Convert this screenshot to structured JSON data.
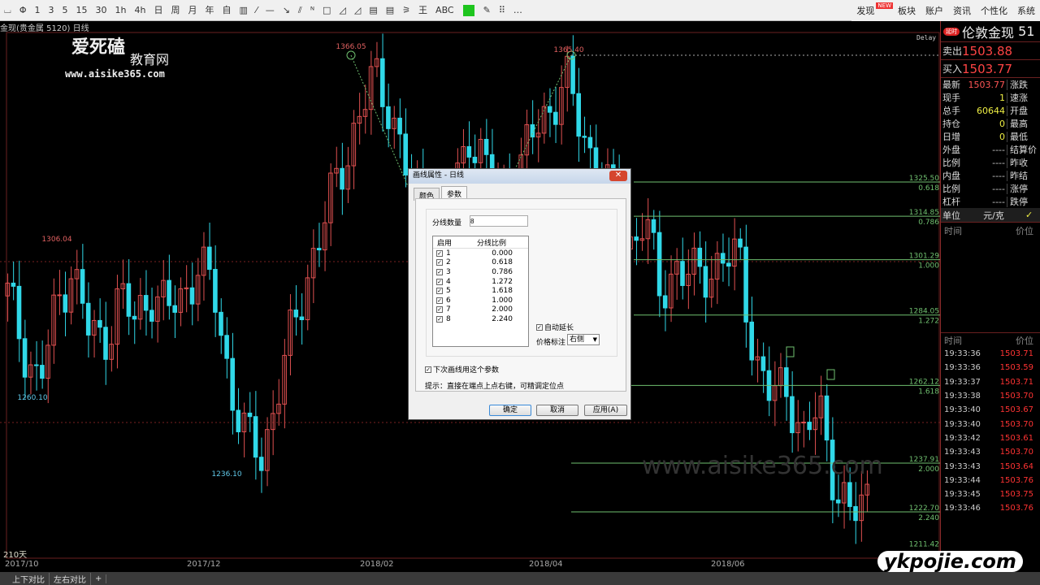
{
  "toolbar": {
    "items": [
      "⌴",
      "Φ",
      "1",
      "3",
      "5",
      "15",
      "30",
      "1h",
      "4h",
      "日",
      "周",
      "月",
      "年",
      "自",
      "▥",
      "⁄",
      "—",
      "↘",
      "⫽",
      "ᴺ",
      "□",
      "◿",
      "◿",
      "▤",
      "▤",
      "⚞",
      "王",
      "ABC",
      "",
      "✎",
      "⠿",
      "…"
    ],
    "nav": [
      {
        "label": "发现",
        "badge": "NEW"
      },
      {
        "label": "板块"
      },
      {
        "label": "账户"
      },
      {
        "label": "资讯"
      },
      {
        "label": "个性化"
      },
      {
        "label": "系统"
      }
    ]
  },
  "chart": {
    "title": "金现(贵金属 5120)  日线",
    "delay": "Delay",
    "days": "210天",
    "x_ticks": [
      "2017/10",
      "2017/12",
      "2018/02",
      "2018/04",
      "2018/06"
    ],
    "closes": [
      1290,
      1275,
      1262,
      1285,
      1300,
      1280,
      1275,
      1290,
      1282,
      1292,
      1285,
      1290,
      1300,
      1290,
      1262,
      1245,
      1240,
      1262,
      1280,
      1300,
      1315,
      1330,
      1345,
      1358,
      1350,
      1330,
      1318,
      1310,
      1320,
      1342,
      1330,
      1322,
      1328,
      1340,
      1348,
      1358,
      1342,
      1330,
      1320,
      1305,
      1315,
      1290,
      1300,
      1295,
      1298,
      1302,
      1300,
      1270,
      1258,
      1262,
      1245,
      1255,
      1232,
      1220,
      1228
    ],
    "price_labels": [
      {
        "text": "1366.05",
        "price": 1366.05
      },
      {
        "text": "1365.40",
        "price": 1365.4
      },
      {
        "text": "1306.04",
        "price": 1306.04
      },
      {
        "text": "1260.10",
        "price": 1260.1
      },
      {
        "text": "1236.10",
        "price": 1236.1
      }
    ],
    "fib_levels": [
      {
        "price": "1325.50",
        "ratio": "0.618"
      },
      {
        "price": "1314.85",
        "ratio": "0.786"
      },
      {
        "price": "1301.29",
        "ratio": "1.000"
      },
      {
        "price": "1284.05",
        "ratio": "1.272"
      },
      {
        "price": "1262.12",
        "ratio": "1.618"
      },
      {
        "price": "1237.91",
        "ratio": "2.000"
      },
      {
        "price": "1222.70",
        "ratio": "2.240"
      },
      {
        "price": "1211.42",
        "ratio": ""
      }
    ],
    "colors": {
      "up": "#e05050",
      "down": "#30d8e8",
      "fib": "#6fbf6f",
      "label": "#e06060",
      "low_label": "#60c8e8"
    }
  },
  "watermark": {
    "logo": "爱死磕",
    "sub": "教育网",
    "url": "www.aisike365.com",
    "bg_url": "www.aisike365.com",
    "corner": "ykpojie.com"
  },
  "panel": {
    "badge": "延时",
    "name": "伦敦金现",
    "code": "51",
    "sell_label": "卖出",
    "sell": "1503.88",
    "buy_label": "买入",
    "buy": "1503.77",
    "rows": [
      {
        "l": "最新",
        "v": "1503.77",
        "c": "#f55",
        "r": "涨跌"
      },
      {
        "l": "现手",
        "v": "1",
        "c": "#ee4",
        "r": "速涨"
      },
      {
        "l": "总手",
        "v": "60644",
        "c": "#ee4",
        "r": "开盘"
      },
      {
        "l": "持仓",
        "v": "0",
        "c": "#ee4",
        "r": "最高"
      },
      {
        "l": "日增",
        "v": "0",
        "c": "#ee4",
        "r": "最低"
      },
      {
        "l": "外盘",
        "v": "----",
        "c": "#ccc",
        "r": "结算价"
      },
      {
        "l": "比例",
        "v": "----",
        "c": "#ccc",
        "r": "昨收"
      },
      {
        "l": "内盘",
        "v": "----",
        "c": "#ccc",
        "r": "昨结"
      },
      {
        "l": "比例",
        "v": "----",
        "c": "#ccc",
        "r": "涨停"
      },
      {
        "l": "杠杆",
        "v": "----",
        "c": "#ccc",
        "r": "跌停"
      }
    ],
    "unit_label": "单位",
    "unit": "元/克",
    "check": "✓",
    "time_h": "时间",
    "price_h": "价位",
    "ticks": [
      [
        "19:33:36",
        "1503.71"
      ],
      [
        "19:33:36",
        "1503.59"
      ],
      [
        "19:33:37",
        "1503.71"
      ],
      [
        "19:33:38",
        "1503.70"
      ],
      [
        "19:33:40",
        "1503.67"
      ],
      [
        "19:33:40",
        "1503.70"
      ],
      [
        "19:33:42",
        "1503.61"
      ],
      [
        "19:33:43",
        "1503.70"
      ],
      [
        "19:33:43",
        "1503.64"
      ],
      [
        "19:33:44",
        "1503.76"
      ],
      [
        "19:33:45",
        "1503.75"
      ],
      [
        "19:33:46",
        "1503.76"
      ]
    ]
  },
  "dialog": {
    "title": "画线属性 - 日线",
    "close": "✕",
    "tabs": [
      "颜色",
      "参数"
    ],
    "count_label": "分线数量",
    "count": "8",
    "col_enable": "启用",
    "col_ratio": "分线比例",
    "lines": [
      {
        "n": "1",
        "r": "0.000"
      },
      {
        "n": "2",
        "r": "0.618"
      },
      {
        "n": "3",
        "r": "0.786"
      },
      {
        "n": "4",
        "r": "1.272"
      },
      {
        "n": "5",
        "r": "1.618"
      },
      {
        "n": "6",
        "r": "1.000"
      },
      {
        "n": "7",
        "r": "2.000"
      },
      {
        "n": "8",
        "r": "2.240"
      }
    ],
    "auto_extend": "自动延长",
    "price_mark_label": "价格标注",
    "price_mark": "右侧",
    "next_use": "下次画线用这个参数",
    "hint": "提示：直接在端点上点右键，可精调定位点",
    "ok": "确定",
    "cancel": "取消",
    "apply": "应用(A)"
  },
  "bottom": {
    "tabs": [
      "上下对比",
      "左右对比",
      "+"
    ]
  }
}
